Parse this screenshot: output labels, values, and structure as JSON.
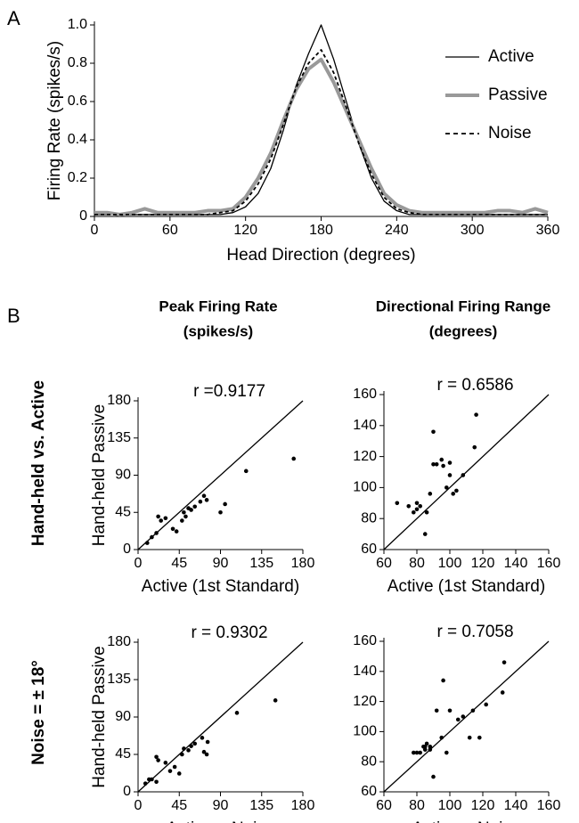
{
  "figure": {
    "panel_labels": [
      "A",
      "B"
    ],
    "column_titles": [
      [
        "Peak Firing Rate",
        "(spikes/s)"
      ],
      [
        "Directional Firing Range",
        "(degrees)"
      ]
    ],
    "row_titles": [
      "Hand-held vs. Active",
      "Noise = ± 18°"
    ]
  },
  "chart_data": [
    {
      "type": "line",
      "xlabel": "Head Direction (degrees)",
      "ylabel": "Firing Rate (spikes/s)",
      "x": [
        0,
        10,
        20,
        30,
        40,
        50,
        60,
        70,
        80,
        90,
        100,
        110,
        120,
        130,
        140,
        150,
        160,
        170,
        180,
        190,
        200,
        210,
        220,
        230,
        240,
        250,
        260,
        270,
        280,
        290,
        300,
        310,
        320,
        330,
        340,
        350,
        360
      ],
      "series": [
        {
          "name": "Active",
          "color": "#000000",
          "values": [
            0.01,
            0.01,
            0.01,
            0.01,
            0.01,
            0.01,
            0.01,
            0.01,
            0.01,
            0.01,
            0.01,
            0.02,
            0.05,
            0.12,
            0.25,
            0.45,
            0.68,
            0.85,
            1.0,
            0.82,
            0.6,
            0.38,
            0.2,
            0.08,
            0.03,
            0.01,
            0.01,
            0.01,
            0.01,
            0.01,
            0.01,
            0.01,
            0.01,
            0.01,
            0.01,
            0.01,
            0.01
          ]
        },
        {
          "name": "Passive",
          "color": "#999999",
          "values": [
            0.02,
            0.02,
            0.01,
            0.02,
            0.04,
            0.02,
            0.02,
            0.02,
            0.02,
            0.03,
            0.03,
            0.04,
            0.1,
            0.2,
            0.33,
            0.5,
            0.66,
            0.77,
            0.82,
            0.7,
            0.55,
            0.4,
            0.25,
            0.12,
            0.06,
            0.03,
            0.02,
            0.02,
            0.02,
            0.02,
            0.02,
            0.02,
            0.03,
            0.03,
            0.02,
            0.04,
            0.02
          ]
        },
        {
          "name": "Noise",
          "color": "#000000",
          "linestyle": "dashed",
          "values": [
            0.01,
            0.01,
            0.01,
            0.01,
            0.01,
            0.01,
            0.01,
            0.01,
            0.01,
            0.01,
            0.02,
            0.03,
            0.08,
            0.17,
            0.3,
            0.48,
            0.67,
            0.8,
            0.87,
            0.75,
            0.57,
            0.38,
            0.22,
            0.1,
            0.04,
            0.02,
            0.01,
            0.01,
            0.01,
            0.01,
            0.01,
            0.01,
            0.01,
            0.01,
            0.01,
            0.01,
            0.01
          ]
        }
      ],
      "xlim": [
        0,
        360
      ],
      "xticks": [
        0,
        60,
        120,
        180,
        240,
        300,
        360
      ],
      "ylim": [
        0,
        1
      ],
      "yticks": [
        0,
        0.2,
        0.4,
        0.6,
        0.8,
        {
          "value": 1,
          "label": "1.0"
        }
      ],
      "legend": "upper right"
    },
    {
      "type": "scatter",
      "annotation": "r =0.9177",
      "xlabel": "Active (1st Standard)",
      "ylabel": "Hand-held Passive",
      "x": [
        10,
        15,
        20,
        22,
        25,
        30,
        38,
        42,
        48,
        50,
        52,
        55,
        58,
        62,
        68,
        72,
        75,
        90,
        95,
        118,
        170
      ],
      "y": [
        8,
        15,
        20,
        40,
        35,
        38,
        25,
        22,
        35,
        45,
        40,
        50,
        48,
        52,
        58,
        65,
        60,
        45,
        55,
        95,
        110
      ],
      "color": "#000000",
      "identity_line": true,
      "xlim": [
        0,
        180
      ],
      "xticks": [
        0,
        45,
        90,
        135,
        180
      ],
      "ylim": [
        0,
        180
      ],
      "yticks": [
        0,
        45,
        90,
        135,
        180
      ]
    },
    {
      "type": "scatter",
      "annotation": "r = 0.6586",
      "xlabel": "Active (1st Standard)",
      "ylabel": "",
      "x": [
        68,
        75,
        78,
        80,
        80,
        82,
        85,
        86,
        88,
        90,
        90,
        92,
        95,
        96,
        98,
        100,
        100,
        102,
        104,
        108,
        115,
        116
      ],
      "y": [
        90,
        88,
        84,
        90,
        86,
        88,
        70,
        84,
        96,
        115,
        136,
        115,
        118,
        114,
        100,
        108,
        116,
        96,
        98,
        108,
        126,
        147
      ],
      "color": "#000000",
      "identity_line": true,
      "xlim": [
        60,
        160
      ],
      "xticks": [
        60,
        80,
        100,
        120,
        140,
        160
      ],
      "ylim": [
        60,
        160
      ],
      "yticks": [
        60,
        80,
        100,
        120,
        140,
        160
      ]
    },
    {
      "type": "scatter",
      "annotation": "r = 0.9302",
      "xlabel": "Active + Noise",
      "ylabel": "Hand-held Passive",
      "x": [
        8,
        12,
        15,
        20,
        20,
        22,
        30,
        35,
        40,
        45,
        48,
        50,
        55,
        58,
        62,
        70,
        72,
        75,
        76,
        108,
        150
      ],
      "y": [
        10,
        15,
        15,
        42,
        12,
        38,
        35,
        25,
        30,
        22,
        45,
        52,
        50,
        55,
        58,
        65,
        48,
        45,
        60,
        95,
        110
      ],
      "color": "#000000",
      "identity_line": true,
      "xlim": [
        0,
        180
      ],
      "xticks": [
        0,
        45,
        90,
        135,
        180
      ],
      "ylim": [
        0,
        180
      ],
      "yticks": [
        0,
        45,
        90,
        135,
        180
      ]
    },
    {
      "type": "scatter",
      "annotation": "r = 0.7058",
      "xlabel": "Active + Noise",
      "ylabel": "",
      "x": [
        78,
        80,
        82,
        84,
        85,
        85,
        86,
        88,
        88,
        90,
        92,
        95,
        96,
        98,
        100,
        105,
        108,
        112,
        114,
        118,
        122,
        132,
        133
      ],
      "y": [
        86,
        86,
        86,
        90,
        90,
        88,
        92,
        88,
        90,
        70,
        114,
        96,
        134,
        86,
        114,
        108,
        110,
        96,
        114,
        96,
        118,
        126,
        146
      ],
      "color": "#000000",
      "identity_line": true,
      "xlim": [
        60,
        160
      ],
      "xticks": [
        60,
        80,
        100,
        120,
        140,
        160
      ],
      "ylim": [
        60,
        160
      ],
      "yticks": [
        60,
        80,
        100,
        120,
        140,
        160
      ]
    }
  ]
}
